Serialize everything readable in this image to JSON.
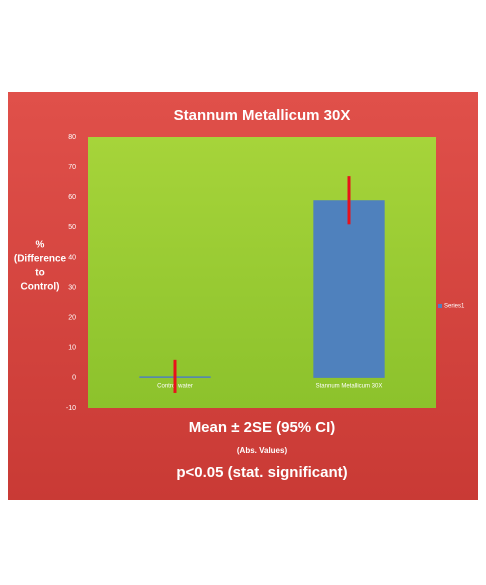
{
  "chart_data": {
    "type": "bar",
    "title": "Stannum Metallicum 30X",
    "ylabel": [
      "%",
      "(Difference",
      "to",
      "Control)"
    ],
    "categories": [
      "Control water",
      "Stannum Metallicum 30X"
    ],
    "series": [
      {
        "name": "Series1",
        "color": "#4f81bd",
        "values": [
          0.5,
          59
        ],
        "errors": [
          5.5,
          8
        ],
        "error_color": "#e8121b"
      }
    ],
    "ylim": [
      -10,
      80
    ],
    "yticks": [
      -10,
      0,
      10,
      20,
      30,
      40,
      50,
      60,
      70,
      80
    ],
    "grid": false,
    "legend": "right",
    "notes": [
      "Mean ± 2SE  (95% CI)",
      "(Abs. Values)",
      "p<0.05 (stat. significant)"
    ]
  }
}
